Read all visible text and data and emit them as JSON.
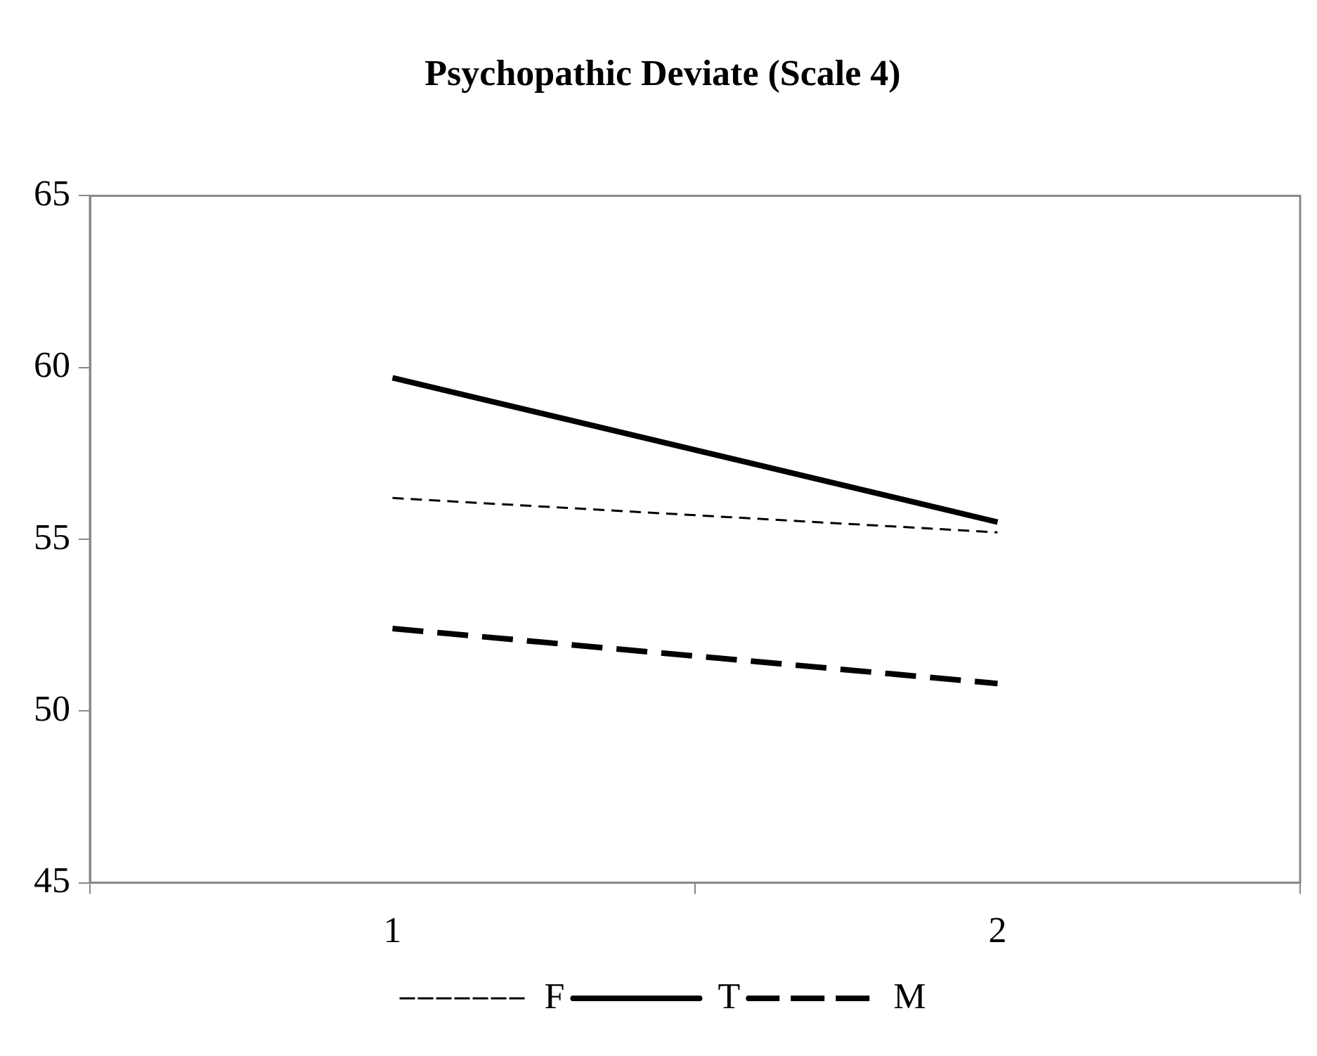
{
  "chart_data": {
    "type": "line",
    "title": "Psychopathic Deviate (Scale 4)",
    "categories": [
      "1",
      "2"
    ],
    "series": [
      {
        "name": "F",
        "color": "#000000",
        "values": [
          56.2,
          55.2
        ],
        "line_style": "dashed"
      },
      {
        "name": "T",
        "color": "#000000",
        "values": [
          59.7,
          55.5
        ],
        "line_style": "solid"
      },
      {
        "name": "M",
        "color": "#000000",
        "values": [
          52.4,
          50.8
        ],
        "line_style": "dashed"
      }
    ],
    "ylim": [
      45,
      65
    ],
    "yticks": [
      45,
      50,
      55,
      60,
      65
    ],
    "grid": false,
    "legend": "bottom",
    "marker": "none"
  }
}
